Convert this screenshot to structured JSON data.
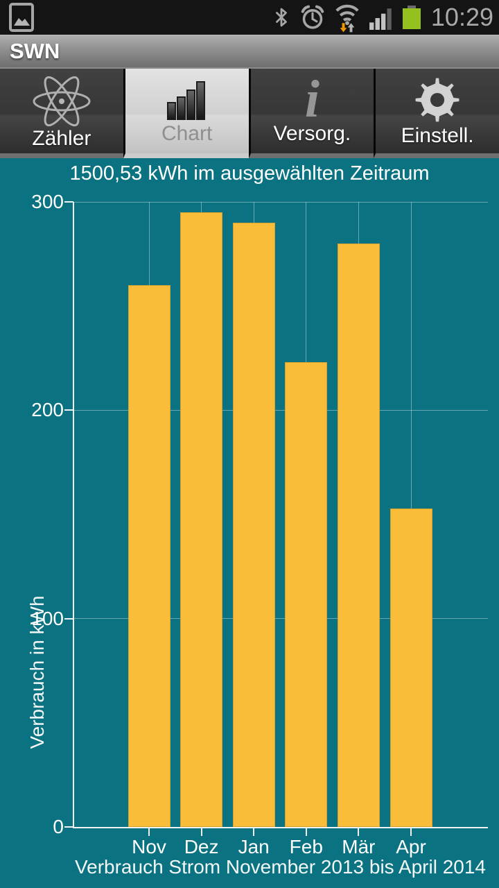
{
  "status_bar": {
    "time": "10:29",
    "icon_color": "#a6a6a6",
    "battery_color": "#94c11f",
    "download_arrow_color": "#f49a00"
  },
  "title_bar": {
    "app_title": "SWN"
  },
  "tabs": [
    {
      "label": "Zähler",
      "icon": "atom-icon",
      "selected": false
    },
    {
      "label": "Chart",
      "icon": "bar-chart-icon",
      "selected": true
    },
    {
      "label": "Versorg.",
      "icon": "info-icon",
      "selected": false,
      "glyph": "i"
    },
    {
      "label": "Einstell.",
      "icon": "gear-icon",
      "selected": false
    }
  ],
  "chart_data": {
    "type": "bar",
    "title": "1500,53 kWh im ausgewählten Zeitraum",
    "ylabel": "Verbrauch in kWh",
    "xlabel": "Verbrauch Strom November 2013 bis April 2014",
    "categories": [
      "Nov",
      "Dez",
      "Jan",
      "Feb",
      "Mär",
      "Apr"
    ],
    "values": [
      260,
      295,
      290,
      223,
      280,
      153
    ],
    "yticks": [
      0,
      100,
      200,
      300
    ],
    "ylim": [
      0,
      300
    ],
    "grid": true,
    "legend": false,
    "colors": {
      "background": "#0a7280",
      "bar": "#f9bd3a",
      "grid_line": "rgba(255,255,255,0.38)",
      "axis_line": "#eef2f2",
      "text": "#ffffff"
    }
  }
}
